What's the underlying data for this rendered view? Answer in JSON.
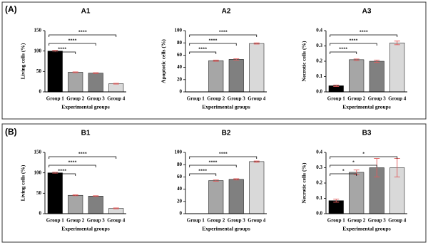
{
  "panel_labels": [
    "(A)",
    "(B)"
  ],
  "chart_data": [
    {
      "type": "bar",
      "title": "A1",
      "ylabel": "Living cells (%)",
      "xlabel": "Experimental groups",
      "categories": [
        "Group 1",
        "Group 2",
        "Group 3",
        "Group 4"
      ],
      "values": [
        100,
        48,
        46,
        20
      ],
      "errors": [
        2,
        1,
        1,
        1
      ],
      "colors": [
        "#000000",
        "#a6a6a6",
        "#808080",
        "#d9d9d9"
      ],
      "error_color": "#e05a5a",
      "ylim": [
        0,
        150
      ],
      "yticks": [
        0,
        50,
        100,
        150
      ],
      "brackets": [
        {
          "from": 0,
          "to": 1,
          "label": "****"
        },
        {
          "from": 0,
          "to": 2,
          "label": "****"
        },
        {
          "from": 0,
          "to": 3,
          "label": "****"
        }
      ]
    },
    {
      "type": "bar",
      "title": "A2",
      "ylabel": "Apoptotic cells (%)",
      "xlabel": "Experimental groups",
      "categories": [
        "Group 1",
        "Group 2",
        "Group 3",
        "Group 4"
      ],
      "values": [
        0,
        51,
        53,
        79
      ],
      "errors": [
        0,
        1,
        1,
        1
      ],
      "colors": [
        "#000000",
        "#a6a6a6",
        "#808080",
        "#d9d9d9"
      ],
      "error_color": "#e05a5a",
      "ylim": [
        0,
        100
      ],
      "yticks": [
        0,
        20,
        40,
        60,
        80,
        100
      ],
      "brackets": [
        {
          "from": 0,
          "to": 1,
          "label": "****"
        },
        {
          "from": 0,
          "to": 2,
          "label": "****"
        },
        {
          "from": 0,
          "to": 3,
          "label": "****"
        }
      ]
    },
    {
      "type": "bar",
      "title": "A3",
      "ylabel": "Necrotic cells (%)",
      "xlabel": "Experimental groups",
      "categories": [
        "Group 1",
        "Group 2",
        "Group 3",
        "Group 4"
      ],
      "values": [
        0.04,
        0.21,
        0.2,
        0.32
      ],
      "errors": [
        0.005,
        0.005,
        0.008,
        0.012
      ],
      "colors": [
        "#000000",
        "#a6a6a6",
        "#808080",
        "#d9d9d9"
      ],
      "error_color": "#e05a5a",
      "ylim": [
        0,
        0.4
      ],
      "yticks": [
        {
          "value": 0,
          "label": "0.0"
        },
        0.1,
        0.2,
        0.3,
        0.4
      ],
      "brackets": [
        {
          "from": 0,
          "to": 1,
          "label": "****"
        },
        {
          "from": 0,
          "to": 2,
          "label": "****"
        },
        {
          "from": 0,
          "to": 3,
          "label": "****"
        }
      ]
    },
    {
      "type": "bar",
      "title": "B1",
      "ylabel": "Living cells (%)",
      "xlabel": "Experimental groups",
      "categories": [
        "Group 1",
        "Group 2",
        "Group 3",
        "Group 4"
      ],
      "values": [
        100,
        45,
        43,
        13
      ],
      "errors": [
        1.5,
        1,
        1,
        1
      ],
      "colors": [
        "#000000",
        "#a6a6a6",
        "#808080",
        "#d9d9d9"
      ],
      "error_color": "#e05a5a",
      "ylim": [
        0,
        150
      ],
      "yticks": [
        0,
        50,
        100,
        150
      ],
      "brackets": [
        {
          "from": 0,
          "to": 1,
          "label": "****"
        },
        {
          "from": 0,
          "to": 2,
          "label": "****"
        },
        {
          "from": 0,
          "to": 3,
          "label": "****"
        }
      ]
    },
    {
      "type": "bar",
      "title": "B2",
      "xlabel": "Experimental groups",
      "categories": [
        "Group 1",
        "Group 2",
        "Group 3",
        "Group 4"
      ],
      "values": [
        0,
        54,
        56,
        85
      ],
      "errors": [
        0,
        1,
        1,
        1
      ],
      "colors": [
        "#000000",
        "#a6a6a6",
        "#808080",
        "#d9d9d9"
      ],
      "error_color": "#e05a5a",
      "ylim": [
        0,
        100
      ],
      "yticks": [
        0,
        20,
        40,
        60,
        80,
        100
      ],
      "brackets": [
        {
          "from": 0,
          "to": 1,
          "label": "****"
        },
        {
          "from": 0,
          "to": 2,
          "label": "****"
        },
        {
          "from": 0,
          "to": 3,
          "label": "****"
        }
      ]
    },
    {
      "type": "bar",
      "title": "B3",
      "ylabel": "Necrotic cells (%)",
      "xlabel": "Experimental groups",
      "categories": [
        "Group 1",
        "Group 2",
        "Group 3",
        "Group 4"
      ],
      "values": [
        0.085,
        0.27,
        0.3,
        0.3
      ],
      "errors": [
        0.01,
        0.015,
        0.06,
        0.06
      ],
      "colors": [
        "#000000",
        "#a6a6a6",
        "#808080",
        "#d9d9d9"
      ],
      "error_color": "#e05a5a",
      "ylim": [
        0,
        0.4
      ],
      "yticks": [
        {
          "value": 0,
          "label": "0.0"
        },
        0.1,
        0.2,
        0.3,
        0.4
      ],
      "brackets": [
        {
          "from": 0,
          "to": 1,
          "label": "*"
        },
        {
          "from": 0,
          "to": 2,
          "label": "*"
        },
        {
          "from": 0,
          "to": 3,
          "label": "*"
        }
      ]
    }
  ]
}
